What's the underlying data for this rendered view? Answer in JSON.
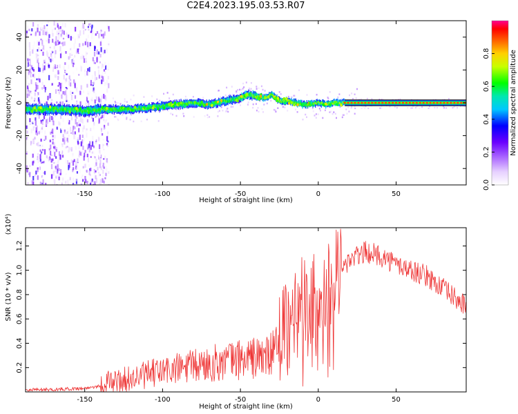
{
  "title": "C2E4.2023.195.03.53.R07",
  "chart_data": [
    {
      "type": "heatmap",
      "xlabel": "Height of straight line (km)",
      "ylabel": "Frequency (Hz)",
      "xlim": [
        -188,
        95
      ],
      "ylim": [
        -50,
        50
      ],
      "xticks": [
        -150,
        -100,
        -50,
        0,
        50
      ],
      "yticks": [
        -40,
        -20,
        0,
        20,
        40
      ],
      "grid": false,
      "colorbar": {
        "label": "Normalized spectral amplitude",
        "range": [
          0,
          1
        ],
        "ticks": [
          "0.0",
          "0.2",
          "0.4",
          "0.6",
          "0.8"
        ]
      },
      "ridge": {
        "x": [
          -180,
          -165,
          -150,
          -140,
          -130,
          -120,
          -110,
          -100,
          -90,
          -80,
          -70,
          -60,
          -50,
          -45,
          -40,
          -35,
          -30,
          -25,
          -20,
          -15,
          -10,
          -5,
          0,
          5,
          10,
          15,
          20,
          95
        ],
        "y": [
          -4,
          -4,
          -5,
          -4,
          -4,
          -4,
          -3,
          -2,
          -1,
          0,
          -1,
          1,
          3,
          5,
          4,
          3,
          5,
          1,
          1,
          0,
          -1,
          -1,
          0,
          -1,
          0,
          0,
          0,
          0
        ]
      },
      "stable_tone": {
        "x_start": 17,
        "x_end": 95,
        "frequency": 0
      }
    },
    {
      "type": "line",
      "xlabel": "Height of straight line (km)",
      "ylabel": "SNR (10 * v/v)",
      "axis_multiplier": "(x10⁴)",
      "xlim": [
        -188,
        95
      ],
      "ylim": [
        0,
        1.35
      ],
      "xticks": [
        -150,
        -100,
        -50,
        0,
        50
      ],
      "yticks": [
        "0.2",
        "0.4",
        "0.6",
        "0.8",
        "1.0",
        "1.2"
      ],
      "grid": false,
      "series": [
        {
          "color": "#ee3333",
          "envelope": {
            "x": [
              -188,
              -170,
              -150,
              -140,
              -135,
              -120,
              -110,
              -100,
              -90,
              -80,
              -70,
              -60,
              -50,
              -40,
              -30,
              -25,
              -20,
              -15,
              -10,
              -5,
              0,
              10,
              20,
              30,
              40,
              50,
              60,
              70,
              80,
              90,
              95
            ],
            "y": [
              0.02,
              0.02,
              0.03,
              0.05,
              0.08,
              0.11,
              0.14,
              0.17,
              0.19,
              0.21,
              0.23,
              0.25,
              0.27,
              0.28,
              0.3,
              0.45,
              0.55,
              0.6,
              0.75,
              0.8,
              0.85,
              0.95,
              1.08,
              1.15,
              1.12,
              1.05,
              1.0,
              0.95,
              0.85,
              0.75,
              0.7
            ]
          }
        }
      ]
    }
  ]
}
